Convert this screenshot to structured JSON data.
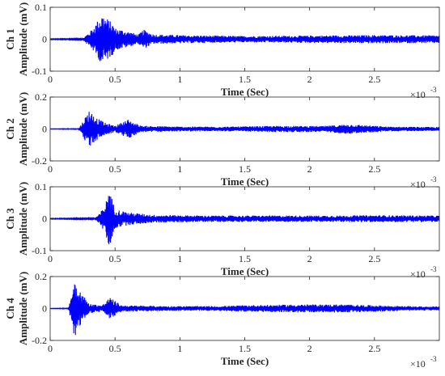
{
  "chart_data": [
    {
      "type": "line",
      "channel_label": "Ch 1",
      "ylabel": "Amplitude (mV)",
      "xlabel": "Time (Sec)",
      "x_multiplier": {
        "base": "×10",
        "exp": "-3"
      },
      "xlim": [
        0,
        0.003
      ],
      "ylim": [
        -0.1,
        0.1
      ],
      "x_ticks": [
        "0",
        "0.5",
        "1",
        "1.5",
        "2",
        "2.5"
      ],
      "y_ticks": [
        "0.1",
        "0",
        "-0.1"
      ],
      "y_tick_values": [
        0.1,
        0,
        -0.1
      ],
      "series": [
        {
          "color": "#0000ff",
          "envelope": [
            [
              0,
              0.001
            ],
            [
              0.00025,
              0.002
            ],
            [
              0.00032,
              0.03
            ],
            [
              0.0004,
              0.08
            ],
            [
              0.00048,
              0.05
            ],
            [
              0.0005,
              0.035
            ],
            [
              0.0006,
              0.025
            ],
            [
              0.00068,
              0.015
            ],
            [
              0.00072,
              0.03
            ],
            [
              0.0008,
              0.015
            ],
            [
              0.0011,
              0.012
            ],
            [
              0.0015,
              0.01
            ],
            [
              0.0022,
              0.012
            ],
            [
              0.0025,
              0.013
            ],
            [
              0.003,
              0.012
            ]
          ]
        }
      ]
    },
    {
      "type": "line",
      "channel_label": "Ch 2",
      "ylabel": "Amplitude (mV)",
      "xlabel": "Time (Sec)",
      "x_multiplier": {
        "base": "×10",
        "exp": "-3"
      },
      "xlim": [
        0,
        0.003
      ],
      "ylim": [
        -0.2,
        0.2
      ],
      "x_ticks": [
        "0",
        "0.5",
        "1",
        "1.5",
        "2",
        "2.5"
      ],
      "y_ticks": [
        "0.2",
        "0",
        "-0.2"
      ],
      "y_tick_values": [
        0.2,
        0,
        -0.2
      ],
      "series": [
        {
          "color": "#0000ff",
          "envelope": [
            [
              0,
              0.001
            ],
            [
              0.00022,
              0.002
            ],
            [
              0.00026,
              0.06
            ],
            [
              0.0003,
              0.12
            ],
            [
              0.00036,
              0.07
            ],
            [
              0.00042,
              0.04
            ],
            [
              0.0005,
              0.02
            ],
            [
              0.0006,
              0.06
            ],
            [
              0.0007,
              0.02
            ],
            [
              0.001,
              0.015
            ],
            [
              0.0014,
              0.015
            ],
            [
              0.0018,
              0.02
            ],
            [
              0.0021,
              0.018
            ],
            [
              0.0023,
              0.03
            ],
            [
              0.0026,
              0.015
            ],
            [
              0.003,
              0.012
            ]
          ]
        }
      ]
    },
    {
      "type": "line",
      "channel_label": "Ch 3",
      "ylabel": "Amplitude (mV)",
      "xlabel": "Time (Sec)",
      "x_multiplier": {
        "base": "×10",
        "exp": "-3"
      },
      "xlim": [
        0,
        0.003
      ],
      "ylim": [
        -0.1,
        0.1
      ],
      "x_ticks": [
        "0",
        "0.5",
        "1",
        "1.5",
        "2",
        "2.5"
      ],
      "y_ticks": [
        "0.1",
        "0",
        "-0.1"
      ],
      "y_tick_values": [
        0.1,
        0,
        -0.1
      ],
      "series": [
        {
          "color": "#0000ff",
          "envelope": [
            [
              0,
              0.001
            ],
            [
              0.00034,
              0.002
            ],
            [
              0.00038,
              0.015
            ],
            [
              0.00043,
              0.05
            ],
            [
              0.00045,
              0.1
            ],
            [
              0.0005,
              0.03
            ],
            [
              0.0006,
              0.02
            ],
            [
              0.0008,
              0.012
            ],
            [
              0.0012,
              0.01
            ],
            [
              0.0018,
              0.01
            ],
            [
              0.0022,
              0.01
            ],
            [
              0.0025,
              0.011
            ],
            [
              0.003,
              0.01
            ]
          ]
        }
      ]
    },
    {
      "type": "line",
      "channel_label": "Ch 4",
      "ylabel": "Amplitude (mV)",
      "xlabel": "Time (Sec)",
      "x_multiplier": {
        "base": "×10",
        "exp": "-3"
      },
      "xlim": [
        0,
        0.003
      ],
      "ylim": [
        -0.2,
        0.2
      ],
      "x_ticks": [
        "0",
        "0.5",
        "1",
        "1.5",
        "2",
        "2.5"
      ],
      "y_ticks": [
        "0.2",
        "0",
        "-0.2"
      ],
      "y_tick_values": [
        0.2,
        0,
        -0.2
      ],
      "series": [
        {
          "color": "#0000ff",
          "envelope": [
            [
              0,
              0.001
            ],
            [
              0.00014,
              0.002
            ],
            [
              0.00016,
              0.08
            ],
            [
              0.00019,
              0.19
            ],
            [
              0.00024,
              0.1
            ],
            [
              0.0003,
              0.03
            ],
            [
              0.0004,
              0.02
            ],
            [
              0.00046,
              0.07
            ],
            [
              0.00055,
              0.02
            ],
            [
              0.0009,
              0.015
            ],
            [
              0.0013,
              0.015
            ],
            [
              0.0015,
              0.02
            ],
            [
              0.0019,
              0.025
            ],
            [
              0.0023,
              0.025
            ],
            [
              0.0027,
              0.015
            ],
            [
              0.003,
              0.012
            ]
          ]
        }
      ]
    }
  ]
}
